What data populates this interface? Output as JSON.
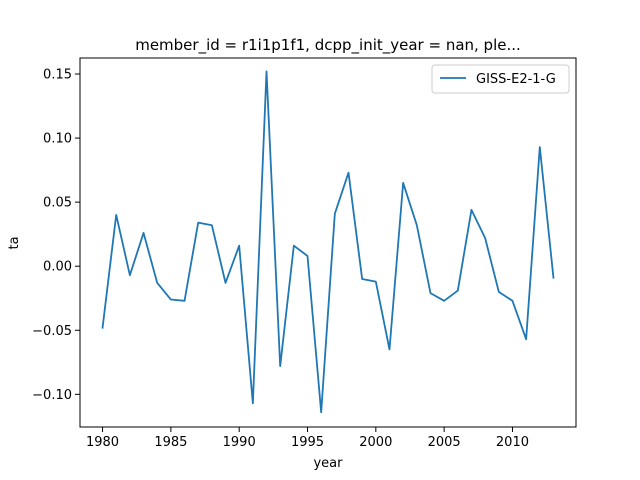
{
  "chart_data": {
    "type": "line",
    "title": "member_id = r1i1p1f1, dcpp_init_year = nan, ple...",
    "xlabel": "year",
    "ylabel": "ta",
    "xlim": [
      1978.35,
      2014.65
    ],
    "ylim": [
      -0.1255,
      0.1625
    ],
    "x_ticks": [
      1980,
      1985,
      1990,
      1995,
      2000,
      2005,
      2010
    ],
    "y_ticks": [
      -0.1,
      -0.05,
      0.0,
      0.05,
      0.1,
      0.15
    ],
    "y_tick_labels": [
      "−0.10",
      "−0.05",
      "0.00",
      "0.05",
      "0.10",
      "0.15"
    ],
    "legend_position": "top-right",
    "grid": false,
    "series": [
      {
        "name": "GISS-E2-1-G",
        "color": "#1f77b4",
        "x": [
          1980,
          1981,
          1982,
          1983,
          1984,
          1985,
          1986,
          1987,
          1988,
          1989,
          1990,
          1991,
          1992,
          1993,
          1994,
          1995,
          1996,
          1997,
          1998,
          1999,
          2000,
          2001,
          2002,
          2003,
          2004,
          2005,
          2006,
          2007,
          2008,
          2009,
          2010,
          2011,
          2012,
          2013
        ],
        "y": [
          -0.048,
          0.04,
          -0.007,
          0.026,
          -0.013,
          -0.026,
          -0.027,
          0.034,
          0.032,
          -0.013,
          0.016,
          -0.107,
          0.152,
          -0.078,
          0.016,
          0.008,
          -0.114,
          0.041,
          0.073,
          -0.01,
          -0.012,
          -0.065,
          0.065,
          0.032,
          -0.021,
          -0.027,
          -0.019,
          0.044,
          0.022,
          -0.02,
          -0.027,
          -0.057,
          0.093,
          -0.009
        ]
      }
    ]
  }
}
